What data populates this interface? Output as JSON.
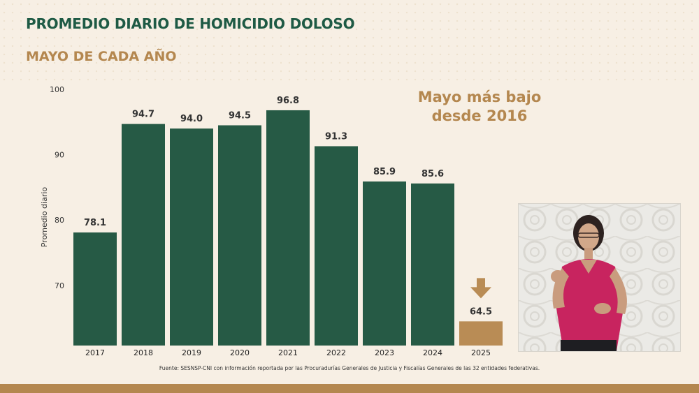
{
  "header": {
    "title": "PROMEDIO DIARIO DE HOMICIDIO DOLOSO",
    "subtitle": "MAYO DE CADA AÑO"
  },
  "annotation": {
    "line1": "Mayo más bajo",
    "line2": "desde 2016"
  },
  "footer": {
    "source": "Fuente: SESNSP-CNI con información reportada por las Procuradurías Generales de Justicia y Fiscalías Generales de las 32 entidades federativas."
  },
  "chart_data": {
    "type": "bar",
    "categories": [
      "2017",
      "2018",
      "2019",
      "2020",
      "2021",
      "2022",
      "2023",
      "2024",
      "2025"
    ],
    "values": [
      78.1,
      94.7,
      94.0,
      94.5,
      96.8,
      91.3,
      85.9,
      85.6,
      64.5
    ],
    "value_labels": [
      "78.1",
      "94.7",
      "94.0",
      "94.5",
      "96.8",
      "91.3",
      "85.9",
      "85.6",
      "64.5"
    ],
    "ylabel": "Promedio diario",
    "yticks": [
      "70",
      "80",
      "90",
      "100"
    ],
    "ylim": [
      60.8,
      100
    ],
    "grid": false,
    "colors": {
      "default": "#265a45",
      "highlight": "#b98c55",
      "arrow": "#b98c55"
    },
    "highlight_category": "2025"
  },
  "colors": {
    "title": "#1e5a44",
    "accent": "#b4874f",
    "background": "#f7efe4"
  }
}
